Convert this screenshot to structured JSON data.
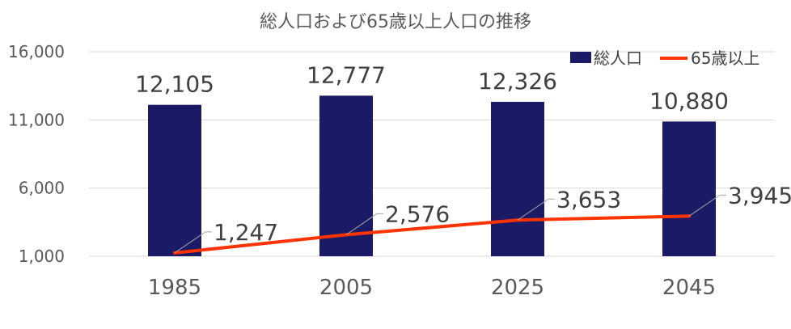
{
  "chart_data": {
    "type": "bar",
    "title": "総人口および65歳以上人口の推移",
    "categories": [
      "1985",
      "2005",
      "2025",
      "2045"
    ],
    "series": [
      {
        "name": "総人口",
        "type": "bar",
        "values": [
          12105,
          12777,
          12326,
          10880
        ],
        "labels": [
          "12,105",
          "12,777",
          "12,326",
          "10,880"
        ]
      },
      {
        "name": "65歳以上",
        "type": "line",
        "values": [
          1247,
          2576,
          3653,
          3945
        ],
        "labels": [
          "1,247",
          "2,576",
          "3,653",
          "3,945"
        ]
      }
    ],
    "ylim": [
      1000,
      16000
    ],
    "yticks": [
      1000,
      6000,
      11000,
      16000
    ],
    "ytick_labels": [
      "1,000",
      "6,000",
      "11,000",
      "16,000"
    ],
    "grid": true,
    "legend": "top-right",
    "colors": {
      "bar": "#1b1a66",
      "line": "#ff3300",
      "grid": "#d9d9d9",
      "leader": "#a6a6a6"
    }
  }
}
